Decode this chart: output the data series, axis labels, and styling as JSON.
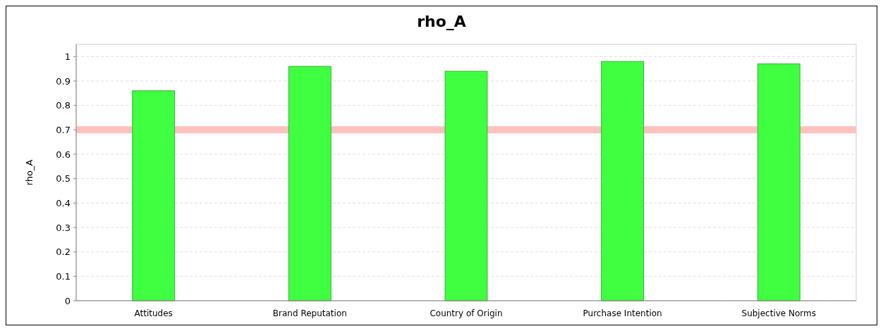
{
  "chart_data": {
    "type": "bar",
    "title": "rho_A",
    "ylabel": "rho_A",
    "categories": [
      "Attitudes",
      "Brand Reputation",
      "Country of Origin",
      "Purchase Intention",
      "Subjective Norms"
    ],
    "values": [
      0.86,
      0.96,
      0.94,
      0.98,
      0.97
    ],
    "color": "#40ff40",
    "ylim": [
      0,
      1.05
    ],
    "yticks": [
      0,
      0.1,
      0.2,
      0.3,
      0.4,
      0.5,
      0.6,
      0.7,
      0.8,
      0.9,
      1
    ],
    "grid": "y",
    "ref_lines": [
      {
        "axis": "y",
        "value": 0.7,
        "color": "#ffc0c0"
      }
    ]
  }
}
